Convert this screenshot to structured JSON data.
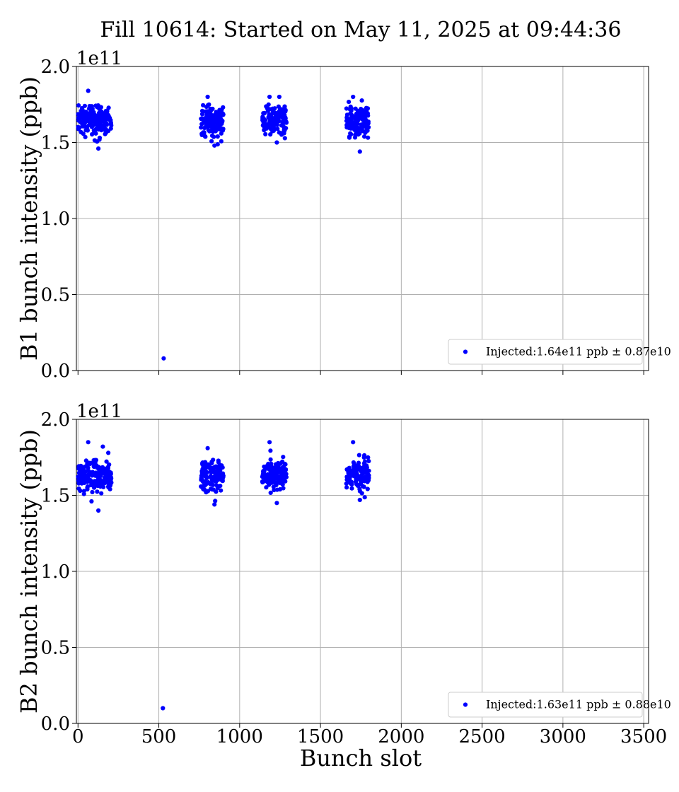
{
  "figure": {
    "title": "Fill 10614: Started on May 11, 2025 at 09:44:36",
    "xlabel": "Bunch slot"
  },
  "chart_data": [
    {
      "type": "scatter",
      "title": "",
      "xlabel": "",
      "ylabel": "B1 bunch intensity (ppb)",
      "y_multiplier": "1e11",
      "xlim": [
        -10,
        3530
      ],
      "ylim": [
        0.0,
        2.0
      ],
      "xticks": [
        "0",
        "500",
        "1000",
        "1500",
        "2000",
        "2500",
        "3000",
        "3500"
      ],
      "xtick_values": [
        0,
        500,
        1000,
        1500,
        2000,
        2500,
        3000,
        3500
      ],
      "xtick_labels_visible": false,
      "yticks": [
        "0.0",
        "0.5",
        "1.0",
        "1.5",
        "2.0"
      ],
      "ytick_values": [
        0.0,
        0.5,
        1.0,
        1.5,
        2.0
      ],
      "grid": true,
      "legend_position": "lower-right",
      "series": [
        {
          "name": "Injected:1.64e11 ppb ± 0.87e10",
          "color": "#0000ff",
          "marker": "circle",
          "mean": 1.64,
          "trains": [
            {
              "x_start": 0,
              "x_end": 210,
              "y_min": 1.46,
              "y_max": 1.84
            },
            {
              "x_start": 760,
              "x_end": 900,
              "y_min": 1.48,
              "y_max": 1.8
            },
            {
              "x_start": 1140,
              "x_end": 1290,
              "y_min": 1.5,
              "y_max": 1.8
            },
            {
              "x_start": 1660,
              "x_end": 1800,
              "y_min": 1.44,
              "y_max": 1.8
            }
          ],
          "outliers": [
            {
              "x": 530,
              "y": 0.08
            }
          ]
        }
      ]
    },
    {
      "type": "scatter",
      "title": "",
      "xlabel": "Bunch slot",
      "ylabel": "B2 bunch intensity (ppb)",
      "y_multiplier": "1e11",
      "xlim": [
        -10,
        3530
      ],
      "ylim": [
        0.0,
        2.0
      ],
      "xticks": [
        "0",
        "500",
        "1000",
        "1500",
        "2000",
        "2500",
        "3000",
        "3500"
      ],
      "xtick_values": [
        0,
        500,
        1000,
        1500,
        2000,
        2500,
        3000,
        3500
      ],
      "xtick_labels_visible": true,
      "yticks": [
        "0.0",
        "0.5",
        "1.0",
        "1.5",
        "2.0"
      ],
      "ytick_values": [
        0.0,
        0.5,
        1.0,
        1.5,
        2.0
      ],
      "grid": true,
      "legend_position": "lower-right",
      "series": [
        {
          "name": "Injected:1.63e11 ppb ± 0.88e10",
          "color": "#0000ff",
          "marker": "circle",
          "mean": 1.63,
          "trains": [
            {
              "x_start": 0,
              "x_end": 210,
              "y_min": 1.4,
              "y_max": 1.85
            },
            {
              "x_start": 760,
              "x_end": 900,
              "y_min": 1.44,
              "y_max": 1.81
            },
            {
              "x_start": 1140,
              "x_end": 1290,
              "y_min": 1.45,
              "y_max": 1.85
            },
            {
              "x_start": 1660,
              "x_end": 1800,
              "y_min": 1.47,
              "y_max": 1.85
            }
          ],
          "outliers": [
            {
              "x": 525,
              "y": 0.1
            }
          ]
        }
      ]
    }
  ]
}
